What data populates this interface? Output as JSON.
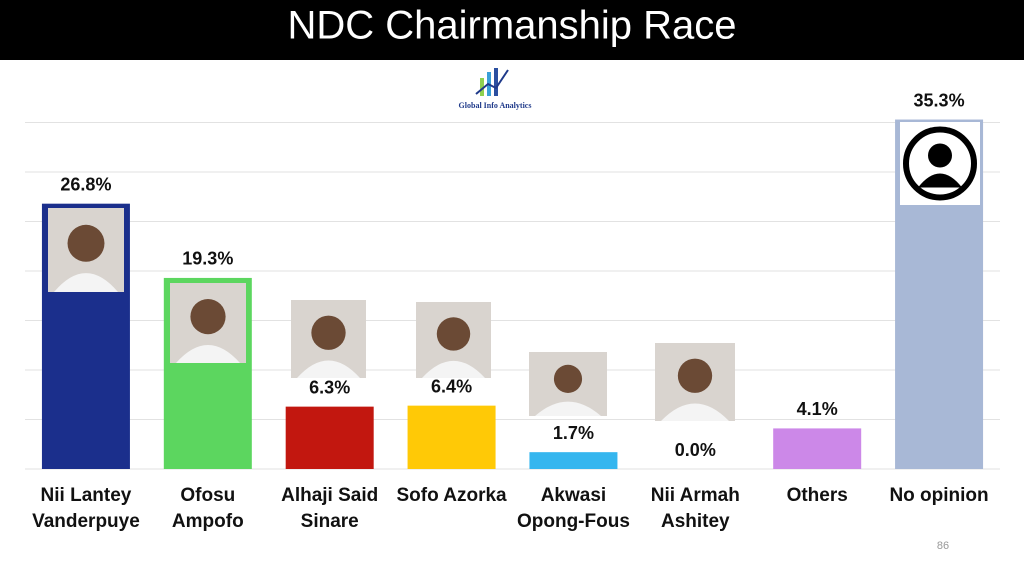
{
  "chart_data": {
    "type": "bar",
    "title": "NDC Chairmanship Race",
    "logo": "Global Info Analytics",
    "page_number": "86",
    "categories": [
      "Nii Lantey\nVanderpuye",
      "Ofosu\nAmpofo",
      "Alhaji Said\nSinare",
      "Sofo Azorka",
      "Akwasi\nOpong-Fous",
      "Nii Armah\nAshitey",
      "Others",
      "No opinion"
    ],
    "values": [
      26.8,
      19.3,
      6.3,
      6.4,
      1.7,
      0.0,
      4.1,
      35.3
    ],
    "value_labels": [
      "26.8%",
      "19.3%",
      "6.3%",
      "6.4%",
      "1.7%",
      "0.0%",
      "4.1%",
      "35.3%"
    ],
    "colors": [
      "#1b2f8c",
      "#5cd65f",
      "#c2170f",
      "#ffc906",
      "#35b6ef",
      "#9e9e9e",
      "#cc88e8",
      "#a8b8d6"
    ],
    "ylim": [
      0,
      40
    ],
    "yticks": [
      0,
      5,
      10,
      15,
      20,
      25,
      30,
      35
    ],
    "grid": true
  }
}
